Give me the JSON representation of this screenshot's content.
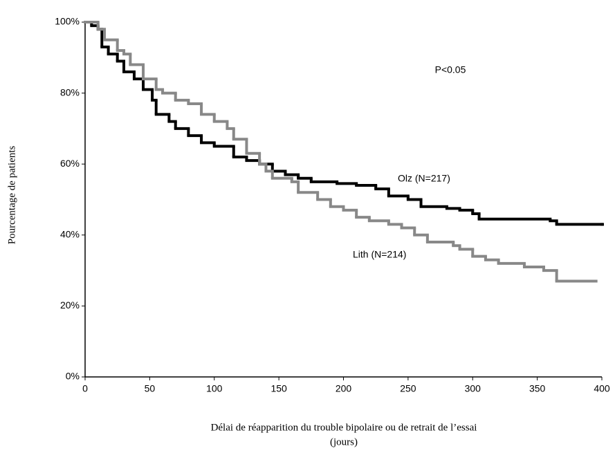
{
  "chart_data": {
    "type": "step",
    "ylabel": "Pourcentage de patients",
    "xlabel": [
      "Délai de réapparition du trouble bipolaire ou de retrait de l’essai",
      "(jours)"
    ],
    "annotation": "P<0.05",
    "xlim": [
      0,
      400
    ],
    "xticks": [
      0,
      50,
      100,
      150,
      200,
      250,
      300,
      350,
      400
    ],
    "ylim": [
      0,
      100
    ],
    "yticks": [
      {
        "value": 0,
        "label": "0%"
      },
      {
        "value": 20,
        "label": "20%"
      },
      {
        "value": 40,
        "label": "40%"
      },
      {
        "value": 60,
        "label": "60%"
      },
      {
        "value": 80,
        "label": "80%"
      },
      {
        "value": 100,
        "label": "100%"
      }
    ],
    "series": [
      {
        "name": "Olz (N=217)",
        "color": "#000000",
        "x": [
          0,
          5,
          10,
          13,
          18,
          25,
          30,
          38,
          45,
          52,
          55,
          65,
          70,
          80,
          90,
          100,
          115,
          125,
          135,
          145,
          155,
          165,
          175,
          195,
          210,
          225,
          235,
          250,
          260,
          280,
          290,
          300,
          305,
          360,
          365,
          400
        ],
        "values": [
          100,
          99,
          98,
          93,
          91,
          89,
          86,
          84,
          81,
          78,
          74,
          72,
          70,
          68,
          66,
          65,
          62,
          61,
          60,
          58,
          57,
          56,
          55,
          54.5,
          54,
          53,
          51,
          50,
          48,
          47.5,
          47,
          46,
          44.5,
          44,
          43,
          43
        ]
      },
      {
        "name": "Lith (N=214)",
        "color": "#888888",
        "x": [
          0,
          10,
          15,
          25,
          30,
          35,
          45,
          55,
          60,
          70,
          80,
          90,
          100,
          110,
          115,
          125,
          135,
          140,
          145,
          160,
          165,
          180,
          190,
          200,
          210,
          220,
          235,
          245,
          255,
          265,
          285,
          290,
          300,
          310,
          320,
          340,
          355,
          365,
          395
        ],
        "values": [
          100,
          98,
          95,
          92,
          91,
          88,
          84,
          81,
          80,
          78,
          77,
          74,
          72,
          70,
          67,
          63,
          60,
          58,
          56,
          55,
          52,
          50,
          48,
          47,
          45,
          44,
          43,
          42,
          40,
          38,
          37,
          36,
          34,
          33,
          32,
          31,
          30,
          27,
          27
        ]
      }
    ]
  }
}
